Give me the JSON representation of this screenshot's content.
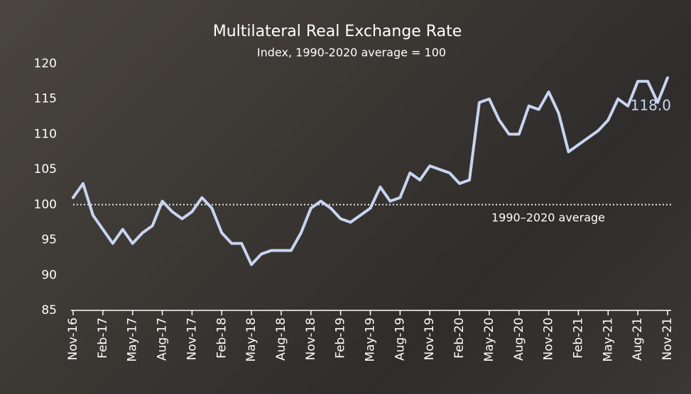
{
  "chart_data": {
    "type": "line",
    "title": "Multilateral Real Exchange Rate",
    "subtitle": "Index, 1990-2020 average = 100",
    "categories": [
      "Nov-16",
      null,
      null,
      "Feb-17",
      null,
      null,
      "May-17",
      null,
      null,
      "Aug-17",
      null,
      null,
      "Nov-17",
      null,
      null,
      "Feb-18",
      null,
      null,
      "May-18",
      null,
      null,
      "Aug-18",
      null,
      null,
      "Nov-18",
      null,
      null,
      "Feb-19",
      null,
      null,
      "May-19",
      null,
      null,
      "Aug-19",
      null,
      null,
      "Nov-19",
      null,
      null,
      "Feb-20",
      null,
      null,
      "May-20",
      null,
      null,
      "Aug-20",
      null,
      null,
      "Nov-20",
      null,
      null,
      "Feb-21",
      null,
      null,
      "May-21",
      null,
      null,
      "Aug-21",
      null,
      null,
      "Nov-21"
    ],
    "series": [
      {
        "name": "Multilateral Real Exchange Rate",
        "color": "#c8d5f0",
        "values": [
          101,
          103,
          98.5,
          96.5,
          94.5,
          96.5,
          94.5,
          96,
          97,
          100.5,
          99,
          98,
          99,
          101,
          99.5,
          96,
          94.5,
          94.5,
          91.5,
          93,
          93.5,
          93.5,
          93.5,
          96,
          99.5,
          100.5,
          99.5,
          98,
          97.5,
          98.5,
          99.5,
          102.5,
          100.5,
          101,
          104.5,
          103.5,
          105.5,
          105,
          104.5,
          103,
          103.5,
          114.5,
          115,
          112,
          110,
          110,
          114,
          113.5,
          116,
          113,
          107.5,
          108.5,
          109.5,
          110.5,
          112,
          115,
          114,
          117.5,
          117.5,
          114.5,
          118
        ]
      }
    ],
    "ylim": [
      85,
      122
    ],
    "yticks": [
      85,
      90,
      95,
      100,
      105,
      110,
      115,
      120
    ],
    "reference_line": 100,
    "reference_label": "1990–2020 average",
    "end_label": "118.0"
  }
}
